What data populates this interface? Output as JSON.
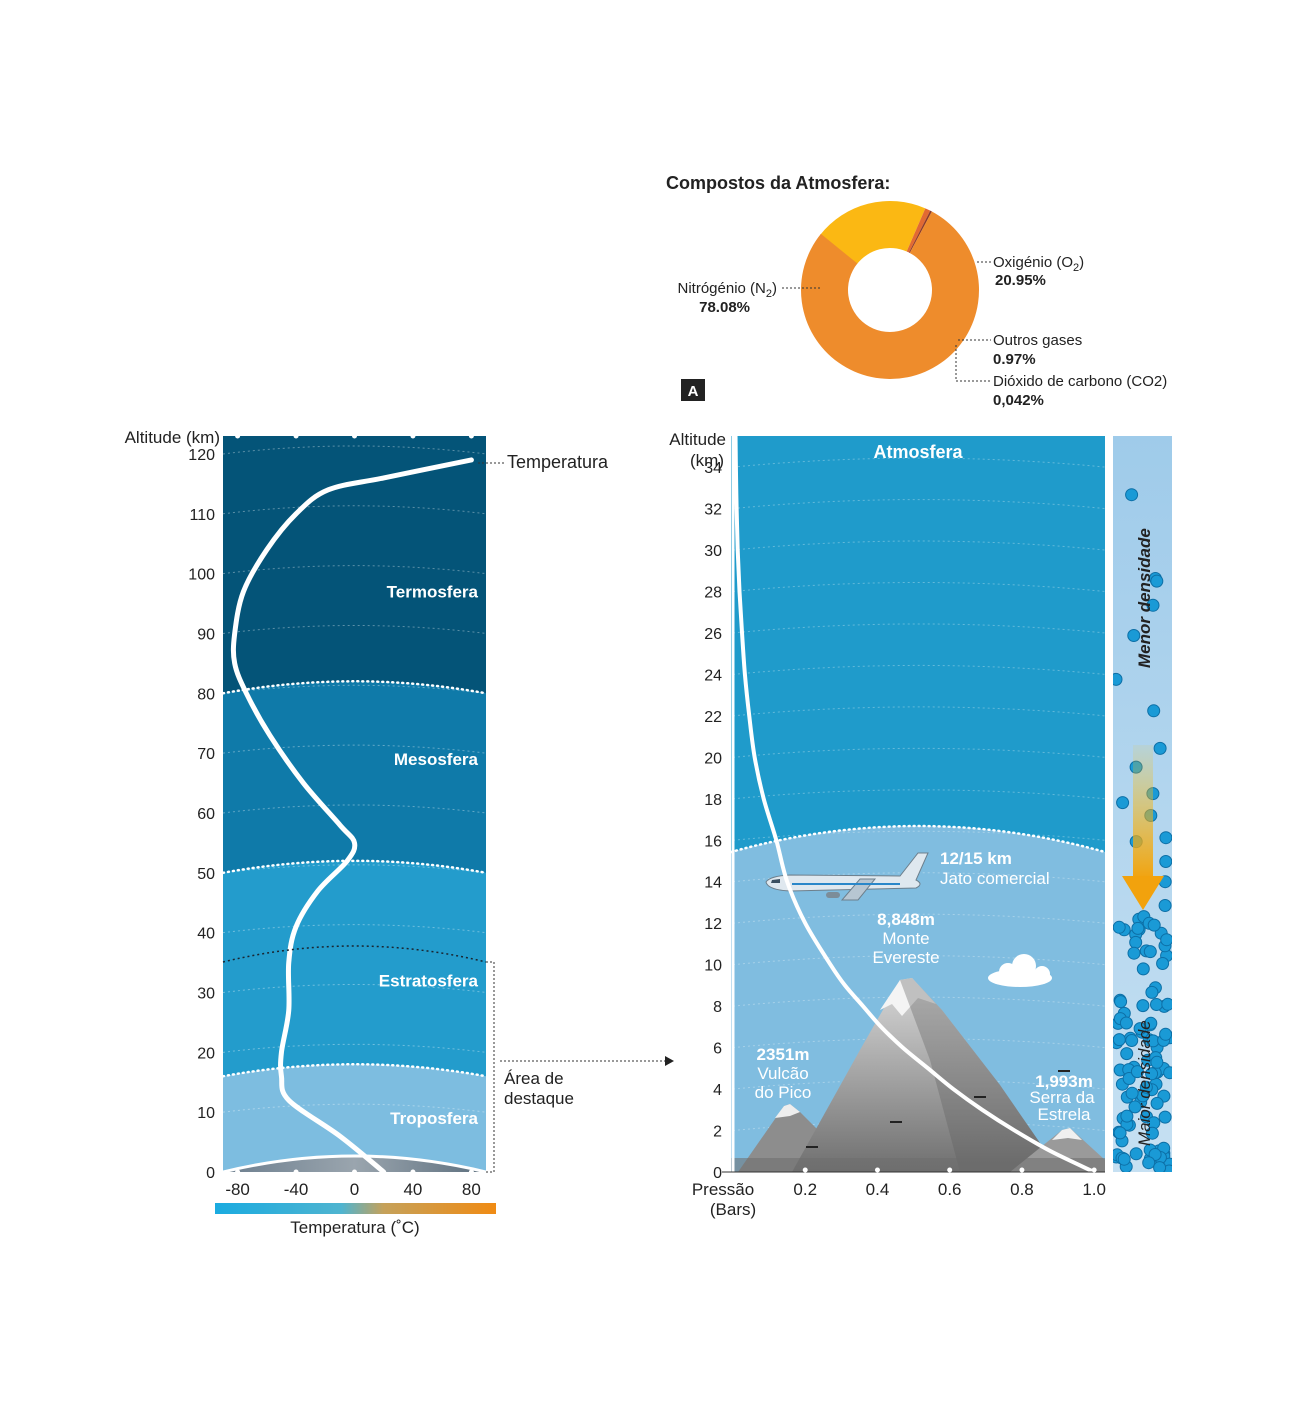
{
  "composition": {
    "title": "Compostos da Atmosfera:",
    "badge": "A",
    "colors": {
      "nitrogen": "#ee8c2c",
      "oxygen": "#fbb813",
      "others": "#e26a32",
      "co2": "#8c3b2a"
    },
    "labels": {
      "nitrogen_name": "Nitrógénio (N",
      "nitrogen_sub": "2",
      "nitrogen_close": ")",
      "nitrogen_value": "78.08%",
      "oxygen_name": "Oxigénio (O",
      "oxygen_sub": "2",
      "oxygen_close": ")",
      "oxygen_value": "20.95%",
      "others_name": "Outros gases",
      "others_value": "0.97%",
      "co2_name": "Dióxido de carbono (CO2)",
      "co2_value": "0,042%"
    }
  },
  "chart_data": [
    {
      "type": "pie",
      "title": "Compostos da Atmosfera:",
      "categories": [
        "Nitrógénio (N2)",
        "Oxigénio (O2)",
        "Outros gases",
        "Dióxido de carbono (CO2)"
      ],
      "values": [
        78.08,
        20.95,
        0.97,
        0.042
      ],
      "donut": true
    },
    {
      "type": "line",
      "xlabel": "Temperatura (°C)",
      "ylabel": "Altitude (km)",
      "xlim": [
        -90,
        90
      ],
      "ylim": [
        0,
        123
      ],
      "x_ticks": [
        -80,
        -40,
        0,
        40,
        80
      ],
      "y_ticks": [
        0,
        10,
        20,
        30,
        40,
        50,
        60,
        70,
        80,
        90,
        100,
        110,
        120
      ],
      "series": [
        {
          "name": "Temperatura",
          "points": [
            [
              20,
              0
            ],
            [
              -10,
              6
            ],
            [
              -45,
              12
            ],
            [
              -50,
              16
            ],
            [
              -50,
              20
            ],
            [
              -45,
              27
            ],
            [
              -45,
              35
            ],
            [
              -40,
              41
            ],
            [
              -25,
              47
            ],
            [
              -5,
              52
            ],
            [
              0,
              55
            ],
            [
              -10,
              58
            ],
            [
              -35,
              65
            ],
            [
              -58,
              73
            ],
            [
              -74,
              80
            ],
            [
              -82,
              85
            ],
            [
              -82,
              90
            ],
            [
              -76,
              97
            ],
            [
              -60,
              104
            ],
            [
              -40,
              110
            ],
            [
              -18,
              114
            ],
            [
              20,
              116
            ],
            [
              80,
              119
            ]
          ]
        }
      ],
      "layers": [
        {
          "name": "Troposfera",
          "from_km": 0,
          "to_km": 16,
          "color": "#7dbde0"
        },
        {
          "name": "Estratosfera",
          "from_km": 16,
          "to_km": 50,
          "color": "#239ccc"
        },
        {
          "name": "Mesosfera",
          "from_km": 50,
          "to_km": 80,
          "color": "#0f7aa9"
        },
        {
          "name": "Termosfera",
          "from_km": 80,
          "to_km": 123,
          "color": "#045478"
        }
      ],
      "highlight_range_km": [
        0,
        35
      ],
      "colorbar": {
        "from": "#1aabe0",
        "to": "#f08b14"
      }
    },
    {
      "type": "line",
      "xlabel": "Pressão (Bars)",
      "ylabel": "Altitude (km)",
      "xlim": [
        0.0,
        1.03
      ],
      "ylim": [
        0,
        35.5
      ],
      "x_ticks": [
        0.2,
        0.4,
        0.6,
        0.8,
        1.0
      ],
      "y_ticks": [
        0,
        2,
        4,
        6,
        8,
        10,
        12,
        14,
        16,
        18,
        20,
        22,
        24,
        26,
        28,
        30,
        32,
        34
      ],
      "series": [
        {
          "name": "Pressão",
          "points": [
            [
              1.0,
              0
            ],
            [
              0.88,
              1
            ],
            [
              0.78,
              2
            ],
            [
              0.69,
              3
            ],
            [
              0.61,
              4
            ],
            [
              0.54,
              5
            ],
            [
              0.47,
              6
            ],
            [
              0.41,
              7
            ],
            [
              0.36,
              8
            ],
            [
              0.31,
              9
            ],
            [
              0.27,
              10
            ],
            [
              0.2,
              12
            ],
            [
              0.15,
              14
            ],
            [
              0.12,
              16
            ],
            [
              0.085,
              18
            ],
            [
              0.06,
              20
            ],
            [
              0.045,
              22
            ],
            [
              0.033,
              24
            ],
            [
              0.025,
              26
            ],
            [
              0.018,
              28
            ],
            [
              0.013,
              30
            ],
            [
              0.01,
              32
            ],
            [
              0.008,
              34
            ],
            [
              0.007,
              35.5
            ]
          ]
        }
      ],
      "layers": [
        {
          "name": "Atmosfera",
          "from_km": 0,
          "to_km": 35.5
        }
      ]
    }
  ],
  "left_chart": {
    "y_title": "Altitude (km)",
    "x_title": "Temperatura (˚C)",
    "curve_label": "Temperatura",
    "callout": "Área de destaque",
    "callout_line1": "Área de",
    "callout_line2": "destaque",
    "y_tick_labels": [
      "0",
      "10",
      "20",
      "30",
      "40",
      "50",
      "60",
      "70",
      "80",
      "90",
      "100",
      "110",
      "120"
    ],
    "x_tick_labels": [
      "-80",
      "-40",
      "0",
      "40",
      "80"
    ],
    "layer_labels": [
      "Troposfera",
      "Estratosfera",
      "Mesosfera",
      "Termosfera"
    ]
  },
  "right_chart": {
    "y_title_line1": "Altitude",
    "y_title_line2": "(km)",
    "x_title_line1": "Pressão",
    "x_title_line2": "(Bars)",
    "layer_label": "Atmosfera",
    "y_tick_labels": [
      "0",
      "2",
      "4",
      "6",
      "8",
      "10",
      "12",
      "14",
      "16",
      "18",
      "20",
      "22",
      "24",
      "26",
      "28",
      "30",
      "32",
      "34"
    ],
    "x_tick_labels": [
      "0.2",
      "0.4",
      "0.6",
      "0.8",
      "1.0"
    ],
    "annotations": {
      "jet_alt": "12/15 km",
      "jet_name": "Jato comercial",
      "everest_alt": "8,848m",
      "everest_name1": "Monte",
      "everest_name2": "Evereste",
      "pico_alt": "2351m",
      "pico_name1": "Vulcão",
      "pico_name2": "do Pico",
      "estrela_alt": "1,993m",
      "estrela_name1": "Serra da",
      "estrela_name2": "Estrela"
    },
    "density_low": "Menor densidade",
    "density_high": "Maior densidade"
  }
}
